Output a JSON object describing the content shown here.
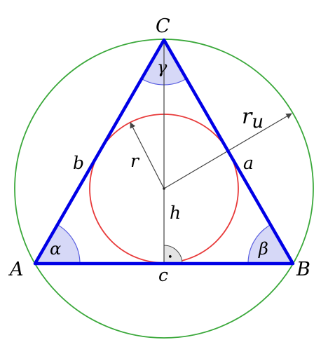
{
  "vertices": {
    "A": "A",
    "B": "B",
    "C": "C"
  },
  "sides": {
    "a": "a",
    "b": "b",
    "c": "c"
  },
  "angles": {
    "alpha": "α",
    "beta": "β",
    "gamma": "γ"
  },
  "segments": {
    "height": "h",
    "inradius": "r",
    "circumradius_base": "r",
    "circumradius_sub": "u"
  },
  "right_angle_mark": "•",
  "colors": {
    "triangle": "#0000e6",
    "incircle": "#e83a3a",
    "circumcircle": "#3aa83a",
    "angle_fill": "#d6d8f7",
    "angle_stroke": "#5a5fe0",
    "right_angle_fill": "#e4e4e4",
    "construction_lines": "#444444"
  }
}
